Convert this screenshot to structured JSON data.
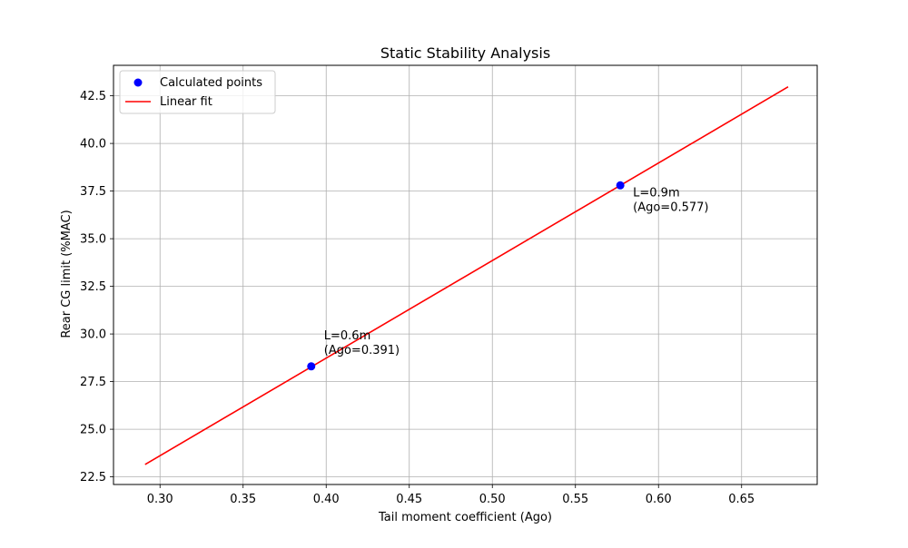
{
  "chart_data": {
    "type": "scatter",
    "title": "Static Stability Analysis",
    "xlabel": "Tail moment coefficient (Ago)",
    "ylabel": "Rear CG limit (%MAC)",
    "xlim": [
      0.272,
      0.6955
    ],
    "ylim": [
      22.1,
      44.1
    ],
    "xticks": [
      0.3,
      0.35,
      0.4,
      0.45,
      0.5,
      0.55,
      0.6,
      0.65
    ],
    "xtick_labels": [
      "0.30",
      "0.35",
      "0.40",
      "0.45",
      "0.50",
      "0.55",
      "0.60",
      "0.65"
    ],
    "yticks": [
      22.5,
      25.0,
      27.5,
      30.0,
      32.5,
      35.0,
      37.5,
      40.0,
      42.5
    ],
    "ytick_labels": [
      "22.5",
      "25.0",
      "27.5",
      "30.0",
      "32.5",
      "35.0",
      "37.5",
      "40.0",
      "42.5"
    ],
    "grid": true,
    "legend_position": "top-left",
    "series": [
      {
        "name": "Calculated points",
        "kind": "scatter",
        "color": "#0000ff",
        "x": [
          0.391,
          0.577
        ],
        "y": [
          28.3,
          37.8
        ]
      },
      {
        "name": "Linear fit",
        "kind": "line",
        "color": "#ff0000",
        "x": [
          0.291,
          0.678
        ],
        "y": [
          23.15,
          42.97
        ]
      }
    ],
    "annotations": [
      {
        "x": 0.391,
        "y": 28.3,
        "lines": [
          "L=0.6m",
          "(Ago=0.391)"
        ]
      },
      {
        "x": 0.577,
        "y": 37.8,
        "lines": [
          "L=0.9m",
          "(Ago=0.577)"
        ]
      }
    ]
  }
}
